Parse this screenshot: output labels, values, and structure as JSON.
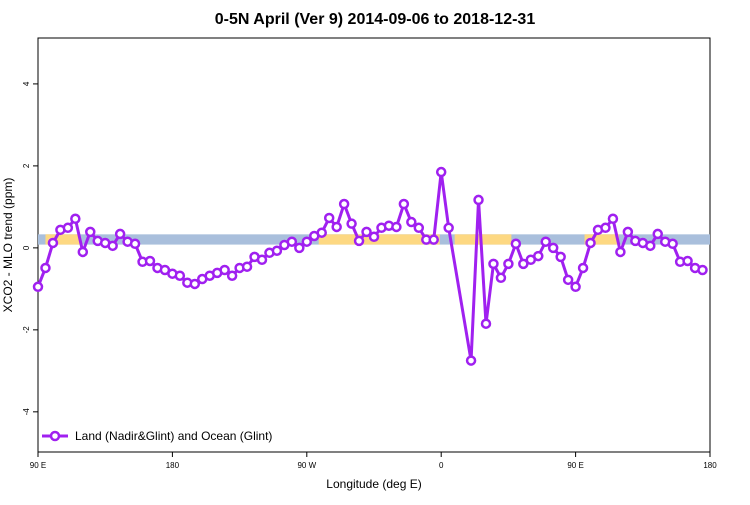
{
  "chart_data": {
    "type": "line",
    "title": "0-5N April (Ver 9)   2014-09-06 to 2018-12-31",
    "x_label": "Longitude (deg E)",
    "y_label": "XCO2 - MLO trend (ppm)",
    "xlim": [
      90,
      540
    ],
    "ylim": [
      -4.98,
      5.12
    ],
    "xticks": [
      {
        "value": 90,
        "label": "90 E"
      },
      180,
      {
        "value": 270,
        "label": "90 W"
      },
      {
        "value": 360,
        "label": "0"
      },
      {
        "value": 450,
        "label": "90 E"
      },
      {
        "value": 540,
        "label": "180"
      }
    ],
    "yticks": [
      -4,
      -2,
      0,
      2,
      4
    ],
    "band": {
      "ylim": [
        0.08,
        0.33
      ],
      "color": "#a9bfdc",
      "land_color": "#fdd882",
      "land_ranges": [
        [
          95,
          118
        ],
        [
          278,
          359
        ],
        [
          369,
          407
        ],
        [
          456,
          479
        ]
      ]
    },
    "legend": "bottomleft",
    "series": [
      {
        "name": "Land (Nadir&Glint) and Ocean (Glint)",
        "color": "#a020f0",
        "x": [
          90,
          95,
          100,
          105,
          110,
          115,
          120,
          125,
          130,
          135,
          140,
          145,
          150,
          155,
          160,
          165,
          170,
          175,
          180,
          185,
          190,
          195,
          200,
          205,
          210,
          215,
          220,
          225,
          230,
          235,
          240,
          245,
          250,
          255,
          260,
          265,
          270,
          275,
          280,
          285,
          290,
          295,
          300,
          305,
          310,
          315,
          320,
          325,
          330,
          335,
          340,
          345,
          350,
          355,
          360,
          365,
          380,
          385,
          390,
          395,
          400,
          405,
          410,
          415,
          420,
          425,
          430,
          435,
          440,
          445,
          450,
          455,
          460,
          465,
          470,
          475,
          480,
          485,
          490,
          495,
          500,
          505,
          510,
          515,
          520,
          525,
          530,
          535
        ],
        "values": [
          -0.95,
          -0.49,
          0.12,
          0.44,
          0.49,
          0.71,
          -0.1,
          0.39,
          0.17,
          0.12,
          0.05,
          0.34,
          0.15,
          0.1,
          -0.34,
          -0.32,
          -0.49,
          -0.54,
          -0.63,
          -0.68,
          -0.85,
          -0.88,
          -0.76,
          -0.68,
          -0.61,
          -0.54,
          -0.68,
          -0.49,
          -0.46,
          -0.22,
          -0.29,
          -0.12,
          -0.07,
          0.07,
          0.15,
          0,
          0.15,
          0.29,
          0.37,
          0.73,
          0.51,
          1.07,
          0.59,
          0.17,
          0.39,
          0.27,
          0.49,
          0.54,
          0.51,
          1.07,
          0.63,
          0.49,
          0.2,
          0.2,
          1.85,
          0.49,
          -2.75,
          1.17,
          -1.85,
          -0.39,
          -0.73,
          -0.39,
          0.1,
          -0.39,
          -0.29,
          -0.2,
          0.15,
          0,
          -0.22,
          -0.78,
          -0.95,
          -0.49,
          0.12,
          0.44,
          0.49,
          0.71,
          -0.1,
          0.39,
          0.17,
          0.12,
          0.05,
          0.34,
          0.15,
          0.1,
          -0.34,
          -0.32,
          -0.49,
          -0.54
        ]
      }
    ]
  }
}
